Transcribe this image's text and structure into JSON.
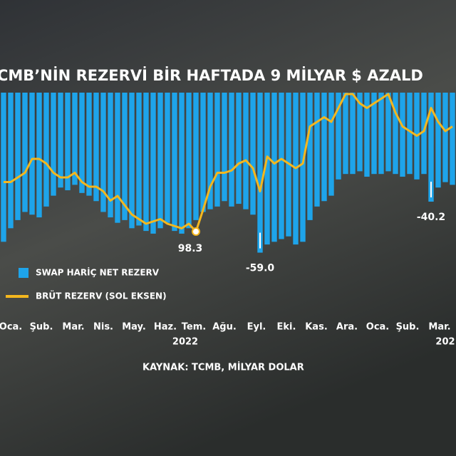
{
  "chart_data": {
    "type": "bar",
    "title": "CMB’NİN REZERVİ BİR HAFTADA 9 MİLYAR $ AZALD",
    "source": "KAYNAK: TCMB, MİLYAR DOLAR",
    "xlim": [
      0,
      64
    ],
    "xticks": [
      {
        "value": 1.5,
        "label": "Oca."
      },
      {
        "value": 5.8,
        "label": "Şub."
      },
      {
        "value": 10.3,
        "label": "Mar."
      },
      {
        "value": 14.5,
        "label": "Nis."
      },
      {
        "value": 18.8,
        "label": "May."
      },
      {
        "value": 23.2,
        "label": "Haz."
      },
      {
        "value": 27.2,
        "label": "Tem."
      },
      {
        "value": 31.5,
        "label": "Ağu."
      },
      {
        "value": 36,
        "label": "Eyl."
      },
      {
        "value": 40.2,
        "label": "Eki."
      },
      {
        "value": 44.4,
        "label": "Kas."
      },
      {
        "value": 48.7,
        "label": "Ara."
      },
      {
        "value": 53,
        "label": "Oca."
      },
      {
        "value": 57.2,
        "label": "Şub."
      },
      {
        "value": 61.7,
        "label": "Mar."
      }
    ],
    "year_labels": [
      {
        "value": 26,
        "label": "2022"
      },
      {
        "value": 62.5,
        "label": "202"
      }
    ],
    "ylim": [
      -62,
      0
    ],
    "y2lim": [
      90,
      130
    ],
    "x": [
      0,
      1,
      2,
      3,
      4,
      5,
      6,
      7,
      8,
      9,
      10,
      11,
      12,
      13,
      14,
      15,
      16,
      17,
      18,
      19,
      20,
      21,
      22,
      23,
      24,
      25,
      26,
      27,
      28,
      29,
      30,
      31,
      32,
      33,
      34,
      35,
      36,
      37,
      38,
      39,
      40,
      41,
      42,
      43,
      44,
      45,
      46,
      47,
      48,
      49,
      50,
      51,
      52,
      53,
      54,
      55,
      56,
      57,
      58,
      59,
      60,
      61,
      62,
      63
    ],
    "series": [
      {
        "name": "SWAP HARİÇ NET REZERV",
        "type": "bar",
        "color": "#1ea4ea",
        "values": [
          -55,
          -50,
          -47,
          -44,
          -45,
          -46,
          -42,
          -38,
          -35,
          -36,
          -34,
          -37,
          -38,
          -40,
          -44,
          -46,
          -48,
          -47,
          -50,
          -49,
          -51,
          -52,
          -50,
          -48,
          -51,
          -52,
          -50,
          -47,
          -44,
          -43,
          -42,
          -40,
          -42,
          -41,
          -43,
          -45,
          -59.0,
          -56,
          -55,
          -54,
          -53,
          -56,
          -55,
          -47,
          -42,
          -40,
          -38,
          -32,
          -30,
          -30,
          -29,
          -31,
          -30,
          -30,
          -29,
          -30,
          -31,
          -30,
          -32,
          -30,
          -40.2,
          -35,
          -33,
          -34
        ],
        "value_labels": [
          null,
          null,
          null,
          null,
          null,
          null,
          null,
          null,
          null,
          null,
          null,
          null,
          null,
          null,
          null,
          null,
          null,
          null,
          null,
          null,
          null,
          null,
          null,
          null,
          null,
          null,
          null,
          null,
          null,
          null,
          null,
          null,
          null,
          null,
          null,
          null,
          "-59.0",
          null,
          null,
          null,
          null,
          null,
          null,
          null,
          null,
          null,
          null,
          null,
          null,
          null,
          null,
          null,
          null,
          null,
          null,
          null,
          null,
          null,
          null,
          null,
          "-40.2",
          null,
          null,
          null
        ]
      },
      {
        "name": "BRÜT REZERV (SOL EKSEN)",
        "type": "line",
        "axis": "y2",
        "color": "#f4b71e",
        "values": [
          109,
          109,
          110,
          111,
          114,
          114,
          113,
          111,
          110,
          110,
          111,
          109,
          108,
          108,
          107,
          105,
          106,
          104,
          102,
          101,
          100,
          100.5,
          101,
          100,
          99.5,
          99,
          100,
          98.3,
          103,
          108,
          111,
          111,
          111.5,
          113,
          113.7,
          112,
          107,
          114.5,
          113,
          114,
          113,
          112,
          113,
          121,
          122,
          123,
          122,
          125,
          128,
          128,
          126,
          125,
          126,
          127,
          128,
          124,
          121,
          120,
          119,
          120,
          125,
          122,
          120,
          121
        ],
        "value_labels": [
          null,
          null,
          null,
          null,
          null,
          null,
          null,
          null,
          null,
          null,
          null,
          null,
          null,
          null,
          null,
          null,
          null,
          null,
          null,
          null,
          null,
          null,
          null,
          null,
          null,
          null,
          null,
          "98.3",
          null,
          null,
          null,
          null,
          null,
          null,
          null,
          null,
          null,
          null,
          null,
          null,
          null,
          null,
          null,
          null,
          null,
          null,
          null,
          null,
          null,
          null,
          null,
          null,
          null,
          null,
          null,
          null,
          null,
          null,
          null,
          null,
          null,
          null,
          null,
          null
        ]
      }
    ]
  }
}
